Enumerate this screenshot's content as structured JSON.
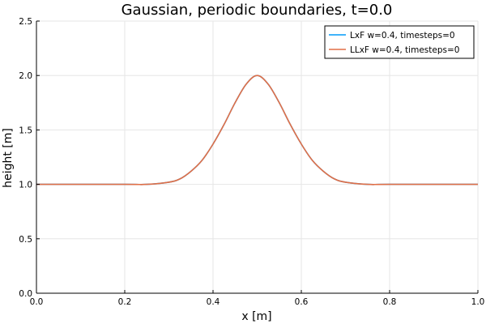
{
  "chart_data": {
    "type": "line",
    "title": "Gaussian, periodic boundaries, t=0.0",
    "xlabel": "x [m]",
    "ylabel": "height [m]",
    "xlim": [
      0,
      1
    ],
    "ylim": [
      0,
      2.5
    ],
    "grid": true,
    "legend_position": "top-right",
    "x_ticks": [
      "0.0",
      "0.2",
      "0.4",
      "0.6",
      "0.8",
      "1.0"
    ],
    "y_ticks": [
      "0.0",
      "0.5",
      "1.0",
      "1.5",
      "2.0",
      "2.5"
    ],
    "x": [
      0.0,
      0.2,
      0.25,
      0.3,
      0.325,
      0.35,
      0.375,
      0.4,
      0.425,
      0.45,
      0.475,
      0.5,
      0.525,
      0.55,
      0.575,
      0.6,
      0.625,
      0.65,
      0.675,
      0.7,
      0.75,
      0.8,
      1.0
    ],
    "series": [
      {
        "name": "LxF w=0.4, timesteps=0",
        "color": "#009af9",
        "values": [
          1.0,
          1.0,
          1.0,
          1.02,
          1.05,
          1.12,
          1.22,
          1.37,
          1.55,
          1.75,
          1.92,
          2.0,
          1.92,
          1.75,
          1.55,
          1.37,
          1.22,
          1.12,
          1.05,
          1.02,
          1.0,
          1.0,
          1.0
        ]
      },
      {
        "name": "LLxF w=0.4, timesteps=0",
        "color": "#e26f46",
        "values": [
          1.0,
          1.0,
          1.0,
          1.02,
          1.05,
          1.12,
          1.22,
          1.37,
          1.55,
          1.75,
          1.92,
          2.0,
          1.92,
          1.75,
          1.55,
          1.37,
          1.22,
          1.12,
          1.05,
          1.02,
          1.0,
          1.0,
          1.0
        ]
      }
    ]
  }
}
